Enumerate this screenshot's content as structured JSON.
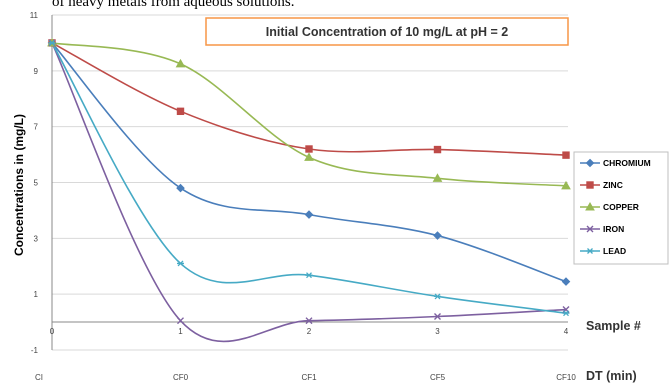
{
  "page_text": "of heavy metals from aqueous solutions.",
  "chart_data": {
    "type": "line",
    "title": "Initial Concentration of 10 mg/L  at pH = 2",
    "ylabel": "Concentrations in (mg/L)",
    "x": [
      0,
      1,
      2,
      3,
      4
    ],
    "x_tick_labels": [
      "0",
      "1",
      "2",
      "3",
      "4"
    ],
    "x_sample_labels": [
      "CI",
      "CF0",
      "CF1",
      "CF5",
      "CF10"
    ],
    "x_axis_annotations": [
      "Sample #",
      "DT  (min)"
    ],
    "ylim": [
      -1,
      11
    ],
    "y_ticks": [
      -1,
      1,
      3,
      5,
      7,
      9,
      11
    ],
    "grid": "horizontal",
    "legend_position": "right",
    "series": [
      {
        "name": "CHROMIUM",
        "values": [
          10,
          4.8,
          3.85,
          3.1,
          1.45
        ],
        "color": "#4a7ebb",
        "marker": "diamond"
      },
      {
        "name": "ZINC",
        "values": [
          10,
          7.55,
          6.2,
          6.18,
          5.98
        ],
        "color": "#be4b48",
        "marker": "square"
      },
      {
        "name": "COPPER",
        "values": [
          10,
          9.25,
          5.9,
          5.15,
          4.88
        ],
        "color": "#98b954",
        "marker": "triangle"
      },
      {
        "name": "IRON",
        "values": [
          10,
          0.05,
          0.05,
          0.2,
          0.45
        ],
        "color": "#7d60a0",
        "marker": "x"
      },
      {
        "name": "LEAD",
        "values": [
          10,
          2.1,
          1.68,
          0.92,
          0.32
        ],
        "color": "#46aac5",
        "marker": "star"
      }
    ]
  }
}
